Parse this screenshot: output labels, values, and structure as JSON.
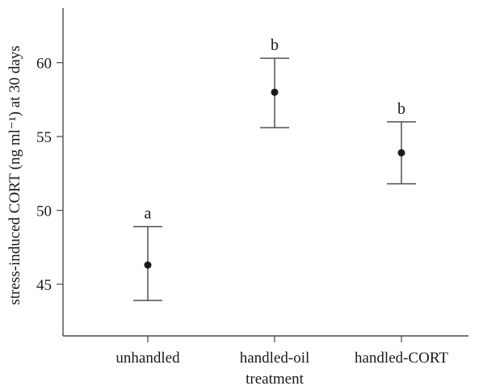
{
  "chart_data": {
    "type": "scatter",
    "categories": [
      "unhandled",
      "handled-oil",
      "handled-CORT"
    ],
    "series": [
      {
        "values": [
          46.3,
          58.0,
          53.9
        ],
        "lower": [
          43.9,
          55.6,
          51.8
        ],
        "upper": [
          48.9,
          60.3,
          56.0
        ],
        "labels": [
          "a",
          "b",
          "b"
        ]
      }
    ],
    "ylabel": "stress-induced CORT (ng ml⁻¹) at 30 days",
    "xlabel": "treatment",
    "ylim": [
      41.5,
      63.7
    ],
    "yticks": [
      45,
      50,
      55,
      60
    ],
    "grid": false,
    "legend": "none",
    "colors": {
      "axis": "#4a4a4a",
      "point": "#1a1a1a",
      "errorbar": "#505050"
    }
  }
}
